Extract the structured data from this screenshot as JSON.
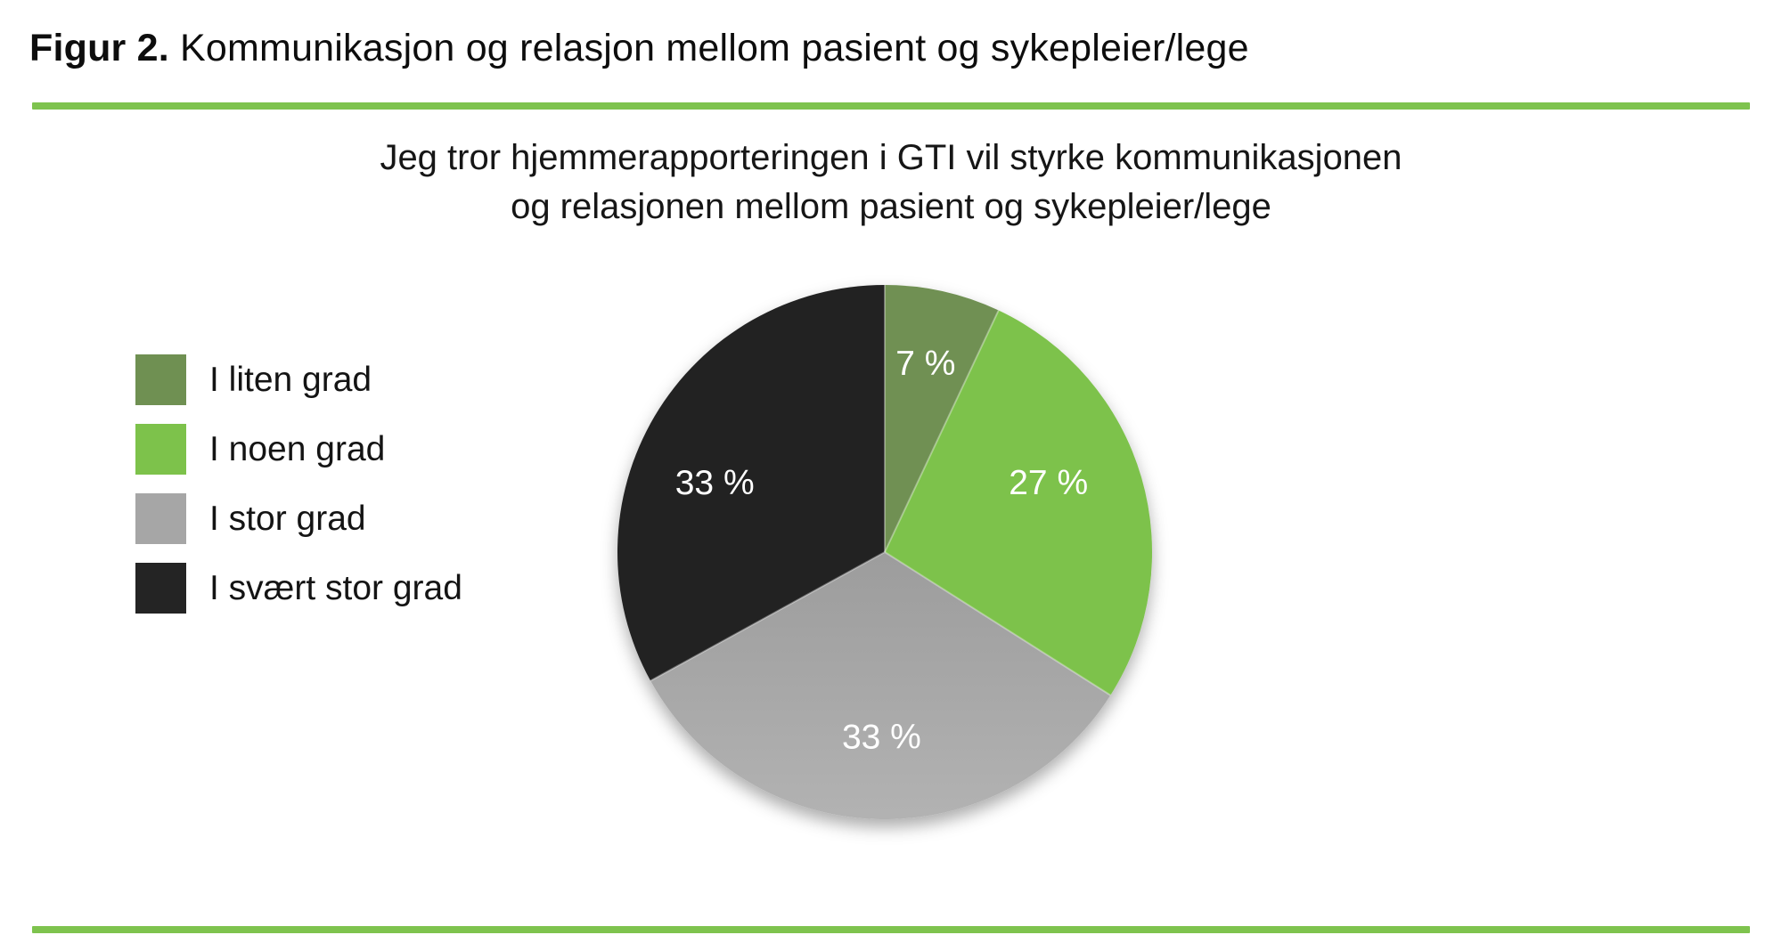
{
  "figure_title": {
    "bold": "Figur 2.",
    "rest": " Kommunikasjon og relasjon mellom pasient og sykepleier/lege"
  },
  "accent": {
    "rule_color": "#7EC34E"
  },
  "chart_data": {
    "type": "pie",
    "title": "Jeg tror hjemmerapporteringen i GTI vil styrke kommunikasjonen og relasjonen mellom pasient og sykepleier/lege",
    "title_lines": [
      "Jeg tror hjemmerapporteringen i GTI vil styrke kommunikasjonen",
      "og relasjonen mellom pasient og sykepleier/lege"
    ],
    "categories": [
      "I liten grad",
      "I noen grad",
      "I stor grad",
      "I svært stor grad"
    ],
    "values": [
      7,
      27,
      33,
      33
    ],
    "labels": [
      "7 %",
      "27 %",
      "33 %",
      "33 %"
    ],
    "colors": [
      "#6F9052",
      "#7DC24B",
      "#A6A6A6",
      "#242424"
    ],
    "start_angle_deg": 0,
    "direction": "clockwise",
    "legend_position": "left",
    "labels_inside": true,
    "data_label_color": "#FFFFFF"
  }
}
